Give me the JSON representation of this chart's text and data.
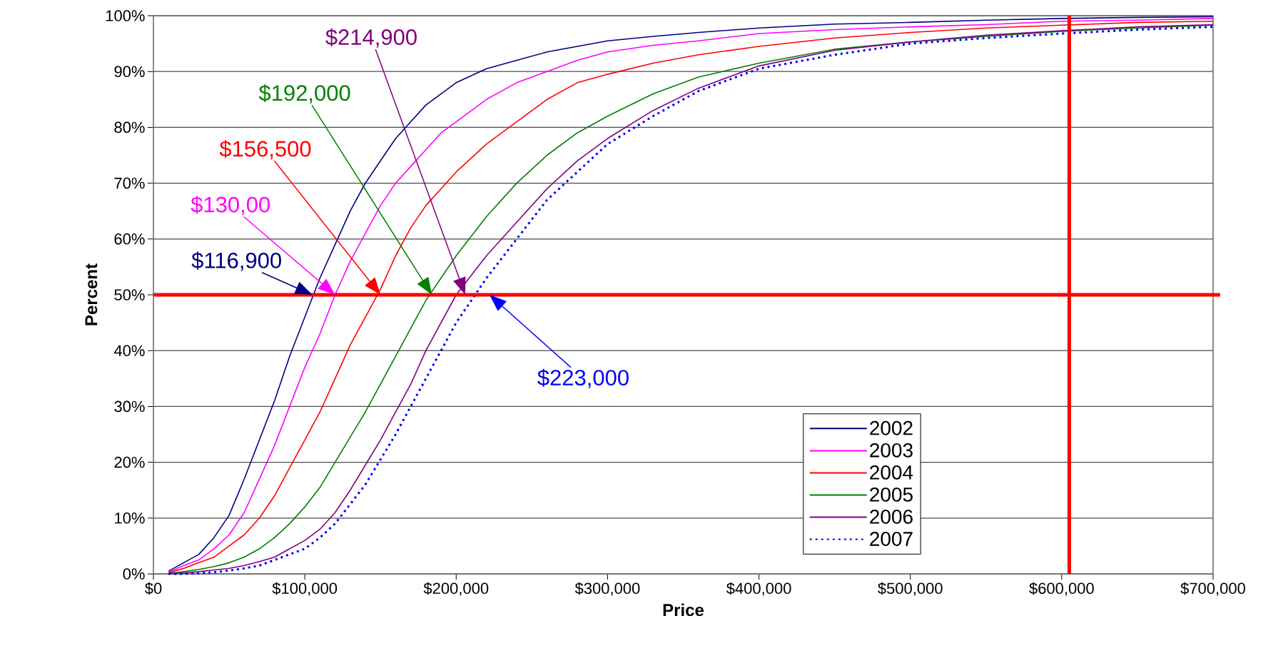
{
  "chart_data": {
    "type": "line",
    "xlabel": "Price",
    "ylabel": "Percent",
    "x": [
      10000,
      20000,
      30000,
      40000,
      50000,
      60000,
      70000,
      80000,
      90000,
      100000,
      110000,
      120000,
      130000,
      140000,
      150000,
      160000,
      170000,
      180000,
      190000,
      200000,
      220000,
      240000,
      260000,
      280000,
      300000,
      330000,
      360000,
      400000,
      450000,
      500000,
      550000,
      600000,
      650000,
      700000
    ],
    "series": [
      {
        "name": "2002",
        "color": "#000080",
        "line_style": "solid",
        "values": [
          0.5,
          2,
          3.5,
          6.5,
          10.5,
          17,
          24,
          31,
          39,
          46,
          53,
          59,
          65,
          70,
          74,
          78,
          81,
          84,
          86,
          88,
          90.5,
          92,
          93.5,
          94.5,
          95.5,
          96.3,
          97,
          97.8,
          98.5,
          98.8,
          99.2,
          99.5,
          99.7,
          99.8
        ]
      },
      {
        "name": "2003",
        "color": "#ff00ff",
        "line_style": "solid",
        "values": [
          0.3,
          1.5,
          2.5,
          4.5,
          7,
          11,
          17,
          23,
          30,
          37,
          43,
          50,
          56,
          61,
          66,
          70,
          73,
          76,
          79,
          81,
          85,
          88,
          90,
          92,
          93.5,
          94.7,
          95.5,
          96.8,
          97.5,
          98,
          98.4,
          99,
          99.2,
          99.5
        ]
      },
      {
        "name": "2004",
        "color": "#ff0000",
        "line_style": "solid",
        "values": [
          0.2,
          1,
          2,
          3,
          5,
          7,
          10,
          14,
          19,
          24,
          29,
          35,
          41,
          46,
          51,
          57,
          62,
          66,
          69,
          72,
          77,
          81,
          85,
          88,
          89.5,
          91.5,
          93,
          94.5,
          96,
          97,
          97.8,
          98.3,
          98.8,
          99
        ]
      },
      {
        "name": "2005",
        "color": "#008000",
        "line_style": "solid",
        "values": [
          0.1,
          0.4,
          0.8,
          1.3,
          2,
          3,
          4.5,
          6.5,
          9,
          12,
          15.5,
          20,
          24.5,
          29,
          34,
          39,
          44,
          49,
          53,
          57,
          64,
          70,
          75,
          79,
          82,
          86,
          89,
          91.5,
          94,
          95.3,
          96.3,
          97.2,
          97.8,
          98.3
        ]
      },
      {
        "name": "2006",
        "color": "#800080",
        "line_style": "solid",
        "values": [
          0,
          0.2,
          0.4,
          0.7,
          1,
          1.5,
          2.2,
          3,
          4.5,
          6,
          8,
          11,
          15,
          19.5,
          24,
          29,
          34,
          40,
          45,
          50,
          57,
          63,
          69,
          74,
          78,
          83,
          87,
          91,
          93.8,
          95.3,
          96.5,
          97.3,
          98,
          98.4
        ]
      },
      {
        "name": "2007",
        "color": "#0000ff",
        "line_style": "dotted",
        "values": [
          0,
          0,
          0.1,
          0.3,
          0.6,
          1,
          1.5,
          2.5,
          3.5,
          4.5,
          6.5,
          9,
          12.5,
          16,
          20.5,
          25,
          30,
          35,
          40,
          45,
          53,
          60,
          67,
          72,
          77,
          82,
          86.5,
          90.5,
          93,
          95,
          96,
          96.8,
          97.5,
          98
        ]
      }
    ],
    "annotations": [
      "$116,900",
      "$130,00",
      "$156,500",
      "$192,000",
      "$214,900",
      "$223,000"
    ],
    "ref_lines": [
      {
        "axis": "y",
        "value": 50,
        "color": "#ff0000"
      },
      {
        "axis": "x",
        "value": 605000,
        "color": "#ff0000"
      }
    ],
    "xlim": [
      0,
      700000
    ],
    "ylim": [
      0,
      100
    ],
    "xticks": [
      {
        "value": 0,
        "label": "$0"
      },
      {
        "value": 100000,
        "label": "$100,000"
      },
      {
        "value": 200000,
        "label": "$200,000"
      },
      {
        "value": 300000,
        "label": "$300,000"
      },
      {
        "value": 400000,
        "label": "$400,000"
      },
      {
        "value": 500000,
        "label": "$500,000"
      },
      {
        "value": 600000,
        "label": "$600,000"
      },
      {
        "value": 700000,
        "label": "$700,000"
      }
    ],
    "yticks": [
      {
        "value": 0,
        "label": "0%"
      },
      {
        "value": 10,
        "label": "10%"
      },
      {
        "value": 20,
        "label": "20%"
      },
      {
        "value": 30,
        "label": "30%"
      },
      {
        "value": 40,
        "label": "40%"
      },
      {
        "value": 50,
        "label": "50%"
      },
      {
        "value": 60,
        "label": "60%"
      },
      {
        "value": 70,
        "label": "70%"
      },
      {
        "value": 80,
        "label": "80%"
      },
      {
        "value": 90,
        "label": "90%"
      },
      {
        "value": 100,
        "label": "100%"
      }
    ],
    "grid": "y",
    "legend": "bottom right",
    "marker": "none"
  }
}
